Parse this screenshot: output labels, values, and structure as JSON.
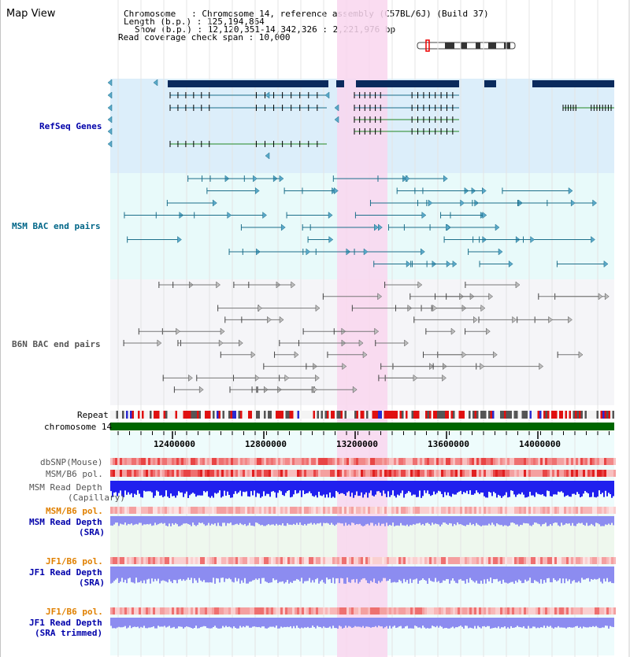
{
  "header": {
    "title": "Map View",
    "chromosome_line": "Chromosome   : Chromosome 14, reference assembly (C57BL/6J) (Build 37)",
    "length_line": "Length (b.p.) : 125,194,864",
    "show_line": "Show (b.p.) : 12,120,351-14,342,326 : 2,221,976 bp",
    "coverage_line": "Read coverage check span : 10,000"
  },
  "tracks": {
    "refseq": "RefSeq Genes",
    "msm_bac": "MSM BAC end pairs",
    "b6n_bac": "B6N BAC end pairs",
    "repeat": "Repeat",
    "chromosome": "chromosome 14",
    "dbsnp": "dbSNP(Mouse)",
    "msm_b6_pol": "MSM/B6 pol.",
    "msm_depth_cap_1": "MSM Read Depth",
    "msm_depth_cap_2": "(Capillary)",
    "msm_b6_pol_sra": "MSM/B6 pol.",
    "msm_depth_sra_1": "MSM Read Depth",
    "msm_depth_sra_2": "(SRA)",
    "jf1_b6_pol": "JF1/B6 pol.",
    "jf1_depth_sra_1": "JF1 Read Depth",
    "jf1_depth_sra_2": "(SRA)",
    "jf1_b6_pol_trim": "JF1/B6 pol.",
    "jf1_depth_trim_1": "JF1 Read Depth",
    "jf1_depth_trim_2": "(SRA trimmed)"
  },
  "axis": {
    "ticks": [
      "12400000",
      "12800000",
      "13200000",
      "13600000",
      "14000000"
    ]
  },
  "colors": {
    "refseq_bg": "#dceefa",
    "msm_bg": "#e8fafa",
    "b6n_bg": "#f5f5f8",
    "highlight": "#f9d6ef",
    "gene_dark": "#0a2a5c",
    "msm_line": "#1d6f8a",
    "b6n_line": "#777777",
    "chromosome_bar": "#006600",
    "snp_red": "#e84545",
    "depth_blue": "#2020ee",
    "depth_light": "#8c8cf0",
    "label_blue": "#0000aa",
    "label_orange": "#e08000"
  }
}
